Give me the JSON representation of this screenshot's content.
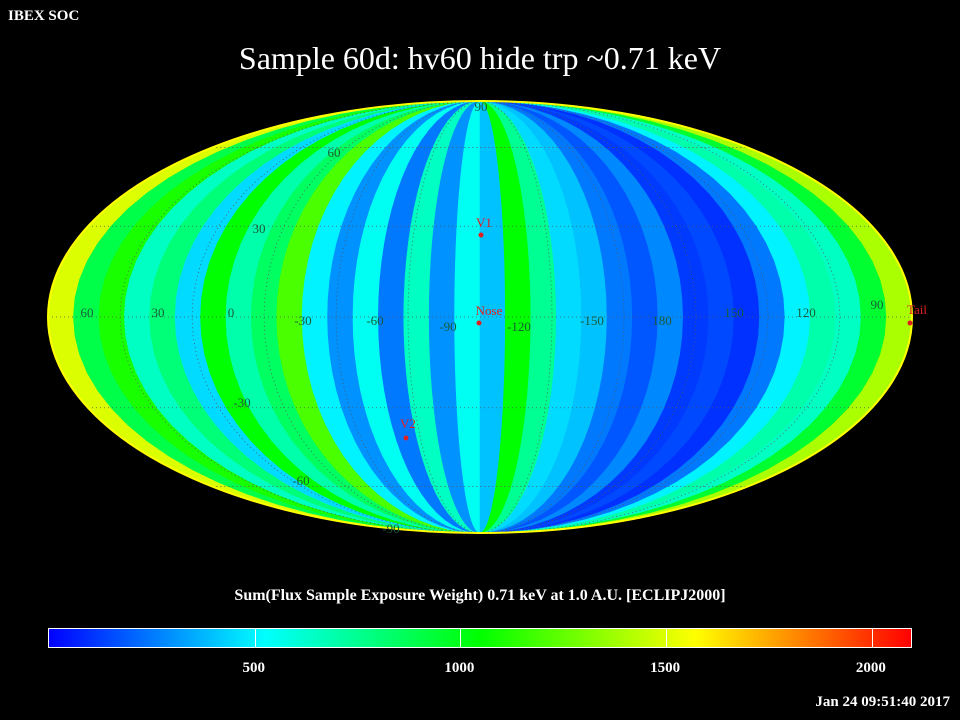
{
  "header": {
    "label": "IBEX SOC"
  },
  "title": "Sample 60d: hv60 hide trp ~0.71 keV",
  "colorbar": {
    "title": "Sum(Flux Sample Exposure Weight)  0.71 keV at 1.0 A.U. [ECLIPJ2000]",
    "tick_labels": [
      "500",
      "1000",
      "1500",
      "2000"
    ],
    "tick_values": [
      500,
      1000,
      1500,
      2000
    ],
    "range": [
      0,
      2100
    ],
    "colors": [
      "#0000ff",
      "#00ffff",
      "#00ff00",
      "#ffff00",
      "#ff0000"
    ]
  },
  "timestamp": "Jan 24 09:51:40 2017",
  "chart_data": {
    "type": "heatmap",
    "projection": "mollweide",
    "frame": "ECLIPJ2000",
    "color_range": [
      0,
      2100
    ],
    "longitude_labels": [
      "60",
      "30",
      "0",
      "-30",
      "-60",
      "-90",
      "-120",
      "-150",
      "180",
      "150",
      "120",
      "90"
    ],
    "latitude_labels": [
      "90",
      "60",
      "30",
      "-30",
      "-60",
      "-90"
    ],
    "markers": [
      {
        "name": "V1"
      },
      {
        "name": "Nose"
      },
      {
        "name": "V2"
      },
      {
        "name": "Tail"
      }
    ],
    "strip_values": [
      1500,
      900,
      1100,
      650,
      800,
      450,
      1050,
      700,
      850,
      1200,
      500,
      300,
      550,
      250,
      650,
      300,
      550,
      400,
      1050,
      750,
      450,
      400,
      250,
      180,
      280,
      120,
      150,
      100,
      250,
      500,
      700,
      650,
      950,
      1400
    ]
  }
}
